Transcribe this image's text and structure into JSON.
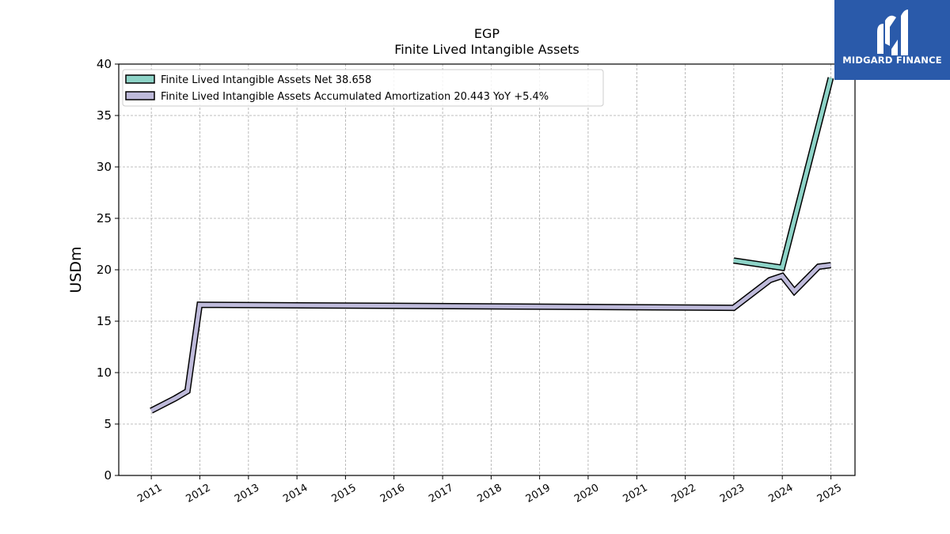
{
  "brand": {
    "name": "MIDGARD FINANCE",
    "color": "#2a5aaa"
  },
  "chart_data": {
    "type": "line",
    "title": "EGP",
    "subtitle": "Finite Lived Intangible Assets",
    "xlabel": "",
    "ylabel": "USDm",
    "xlim": [
      "2010-05-01",
      "2025-07-01"
    ],
    "ylim": [
      0,
      40
    ],
    "yticks": [
      0,
      5,
      10,
      15,
      20,
      25,
      30,
      35,
      40
    ],
    "xticks": [
      "2011",
      "2012",
      "2013",
      "2014",
      "2015",
      "2016",
      "2017",
      "2018",
      "2019",
      "2020",
      "2021",
      "2022",
      "2023",
      "2024",
      "2025"
    ],
    "grid": true,
    "legend_position": "top-left",
    "series": [
      {
        "name": "Finite Lived Intangible Assets Net",
        "legend_label": "Finite Lived Intangible Assets Net  38.658",
        "color": "#8dd3c7",
        "points": [
          [
            "2022-12-31",
            20.9
          ],
          [
            "2023-12-31",
            20.2
          ],
          [
            "2024-12-31",
            38.658
          ]
        ]
      },
      {
        "name": "Finite Lived Intangible Assets Accumulated Amortization",
        "legend_label": "Finite Lived Intangible Assets Accumulated Amortization  20.443 YoY +5.4%",
        "color": "#bebada",
        "points": [
          [
            "2010-12-31",
            6.3
          ],
          [
            "2011-06-30",
            7.5
          ],
          [
            "2011-09-30",
            8.2
          ],
          [
            "2011-12-31",
            16.6
          ],
          [
            "2022-12-31",
            16.3
          ],
          [
            "2023-09-30",
            19.0
          ],
          [
            "2023-12-31",
            19.4
          ],
          [
            "2024-03-31",
            17.9
          ],
          [
            "2024-09-30",
            20.3
          ],
          [
            "2024-12-31",
            20.443
          ]
        ]
      }
    ]
  }
}
